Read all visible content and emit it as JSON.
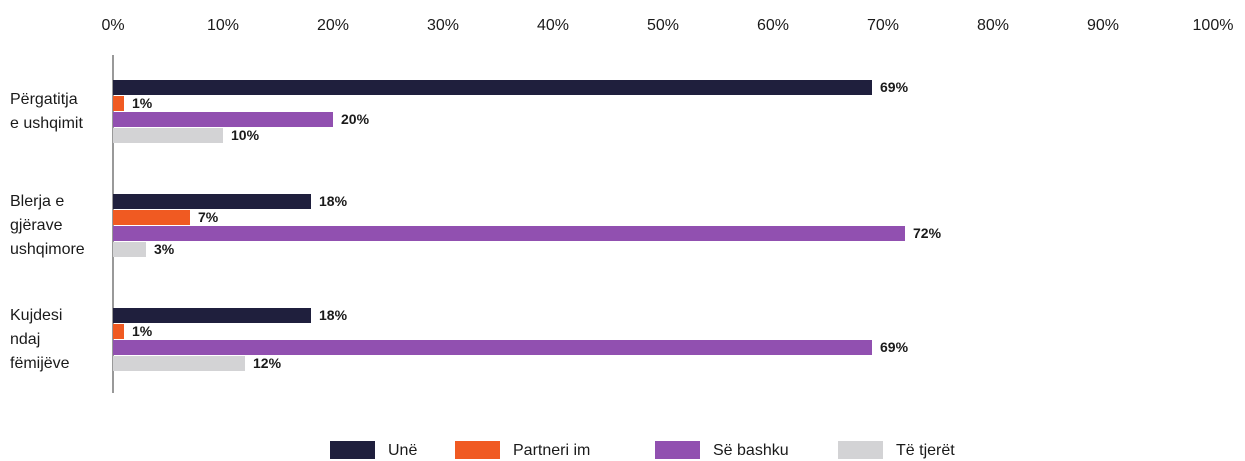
{
  "chart_data": {
    "type": "bar",
    "orientation": "horizontal",
    "categories": [
      "Përgatitja e ushqimit",
      "Blerja e gjërave ushqimore",
      "Kujdesi ndaj fëmijëve"
    ],
    "series": [
      {
        "name": "Unë",
        "color": "#1f1f3d",
        "values": [
          69,
          18,
          18
        ],
        "value_labels": [
          "69%",
          "18%",
          "18%"
        ]
      },
      {
        "name": "Partneri im",
        "color": "#f05a22",
        "values": [
          1,
          7,
          1
        ],
        "value_labels": [
          "1%",
          "7%",
          "1%"
        ]
      },
      {
        "name": "Së bashku",
        "color": "#9150b0",
        "values": [
          20,
          72,
          69
        ],
        "value_labels": [
          "20%",
          "72%",
          "69%"
        ]
      },
      {
        "name": "Të tjerët",
        "color": "#d3d3d5",
        "values": [
          10,
          3,
          12
        ],
        "value_labels": [
          "10%",
          "3%",
          "12%"
        ]
      }
    ],
    "xlim": [
      0,
      100
    ],
    "xticks": [
      {
        "value": 0,
        "label": "0%"
      },
      {
        "value": 10,
        "label": "10%"
      },
      {
        "value": 20,
        "label": "20%"
      },
      {
        "value": 30,
        "label": "30%"
      },
      {
        "value": 40,
        "label": "40%"
      },
      {
        "value": 50,
        "label": "50%"
      },
      {
        "value": 60,
        "label": "60%"
      },
      {
        "value": 70,
        "label": "70%"
      },
      {
        "value": 80,
        "label": "80%"
      },
      {
        "value": 90,
        "label": "90%"
      },
      {
        "value": 100,
        "label": "100%"
      }
    ],
    "legend": "bottom"
  }
}
